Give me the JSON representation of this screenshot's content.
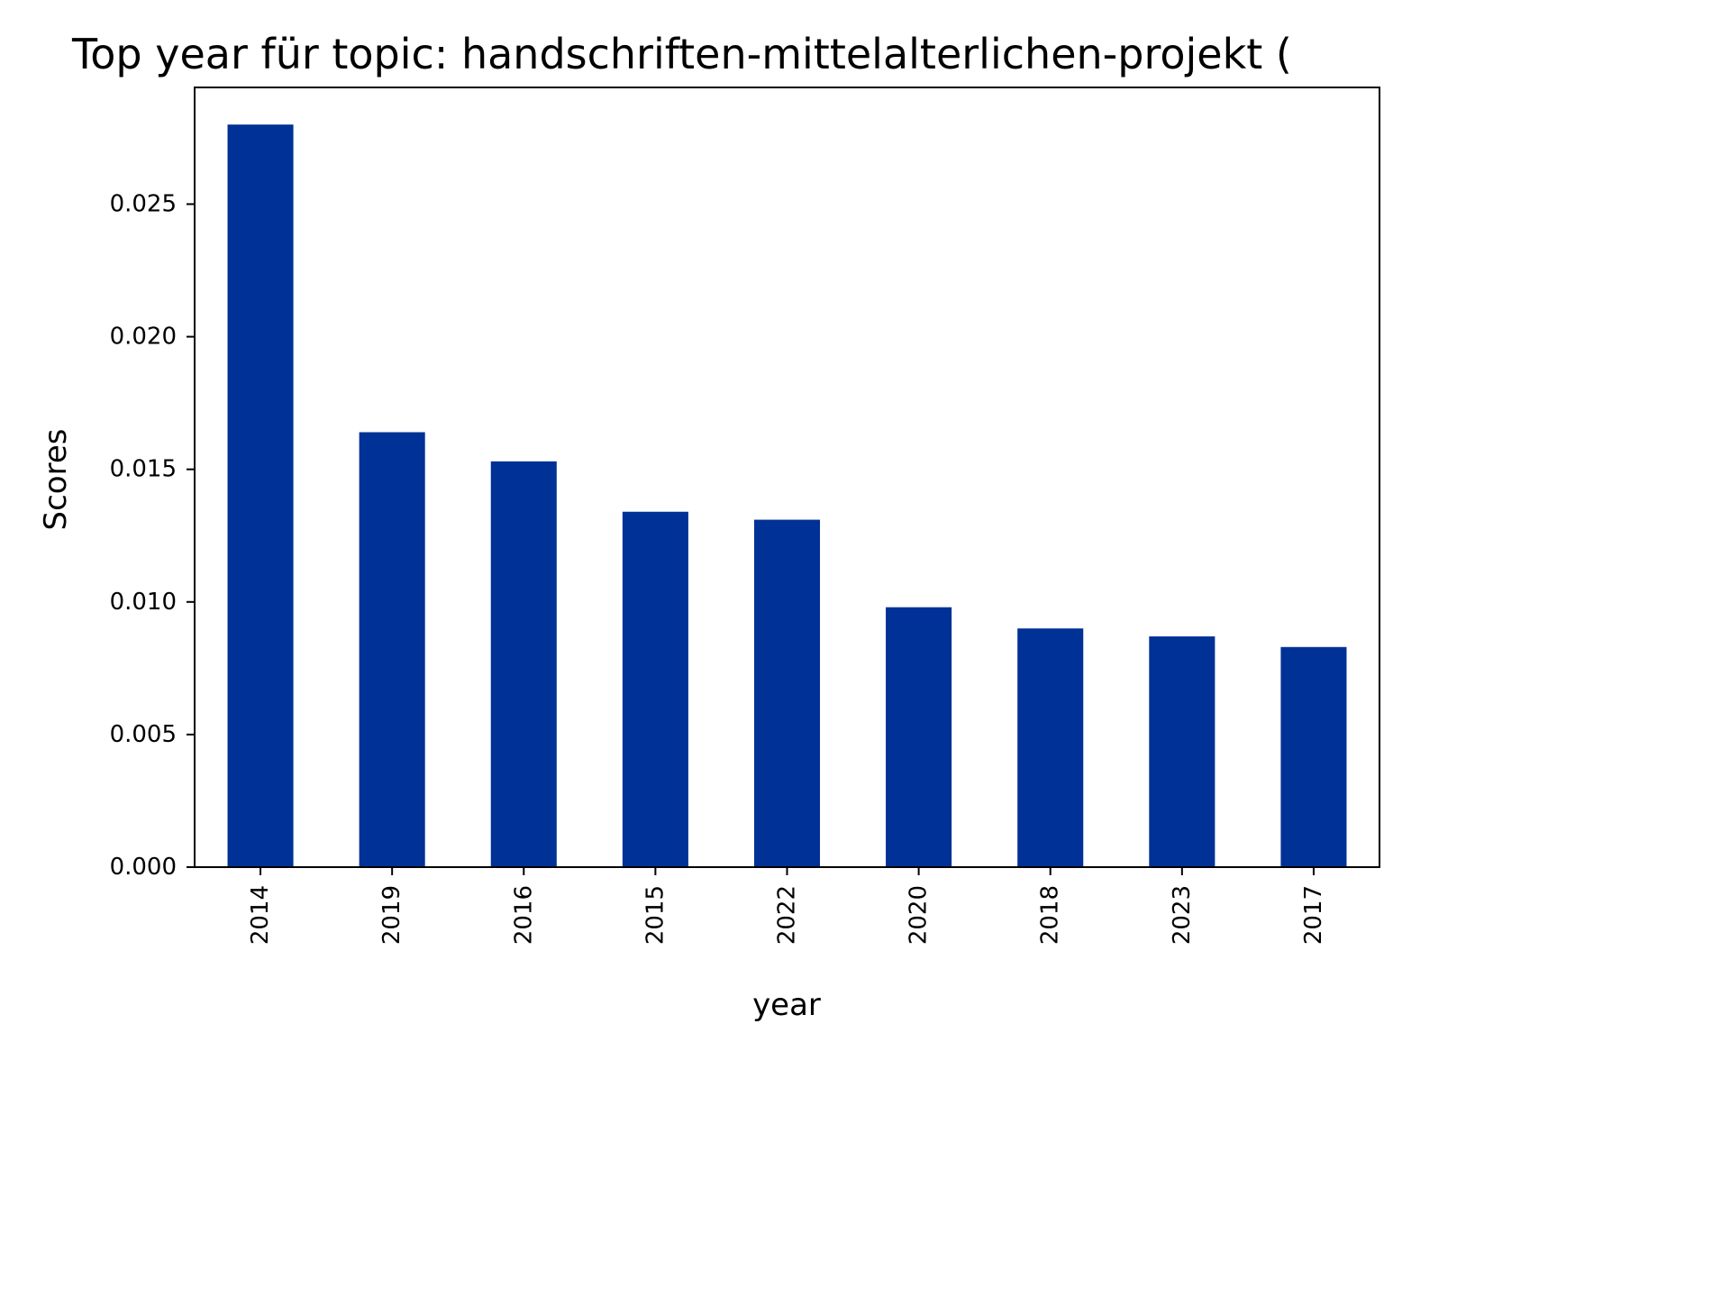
{
  "chart_data": {
    "type": "bar",
    "title": "Top year für topic: handschriften-mittelalterlichen-projekt (",
    "xlabel": "year",
    "ylabel": "Scores",
    "categories": [
      "2014",
      "2019",
      "2016",
      "2015",
      "2022",
      "2020",
      "2018",
      "2023",
      "2017"
    ],
    "values": [
      0.028,
      0.0164,
      0.0153,
      0.0134,
      0.0131,
      0.0098,
      0.009,
      0.0087,
      0.0083
    ],
    "ylim": [
      0,
      0.0294
    ],
    "yticks": [
      0.0,
      0.005,
      0.01,
      0.015,
      0.02,
      0.025
    ],
    "ytick_labels": [
      "0.000",
      "0.005",
      "0.010",
      "0.015",
      "0.020",
      "0.025"
    ],
    "bar_color": "#003196",
    "grid": false,
    "legend": "none"
  }
}
